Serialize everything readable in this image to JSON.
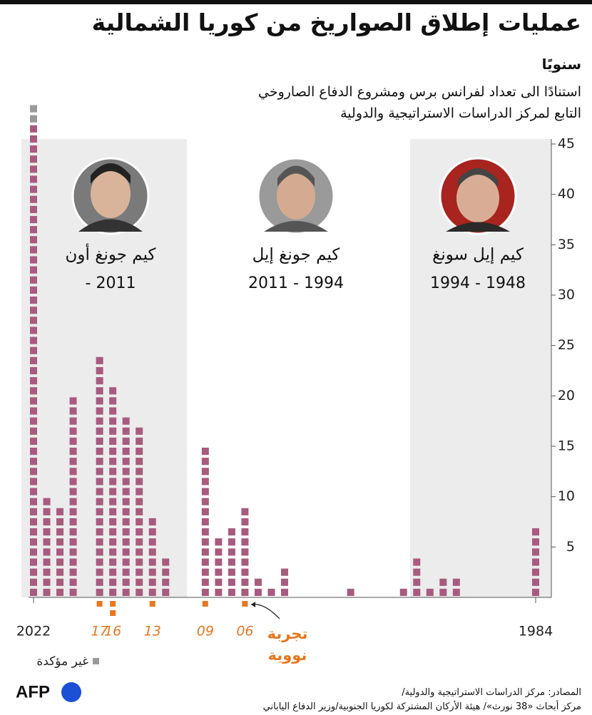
{
  "chart_data": {
    "type": "unit-bar",
    "title": "عمليات إطلاق الصواريخ من كوريا الشمالية",
    "subtitle": "سنويًا",
    "description": [
      "استنادًا الى تعداد لفرانس برس ومشروع الدفاع الصاروخي",
      "التابع لمركز الدراسات الاستراتيجية والدولية"
    ],
    "x": [
      2022,
      2021,
      2020,
      2019,
      2018,
      2017,
      2016,
      2015,
      2014,
      2013,
      2012,
      2011,
      2010,
      2009,
      2008,
      2007,
      2006,
      2005,
      2004,
      2003,
      2002,
      2001,
      2000,
      1999,
      1998,
      1997,
      1996,
      1995,
      1994,
      1993,
      1992,
      1991,
      1990,
      1989,
      1988,
      1987,
      1986,
      1985,
      1984
    ],
    "series": [
      {
        "color": "#a85b7e",
        "values": [
          47,
          10,
          9,
          20,
          0,
          24,
          21,
          18,
          17,
          8,
          4,
          0,
          0,
          15,
          6,
          7,
          9,
          2,
          1,
          3,
          0,
          0,
          0,
          0,
          1,
          0,
          0,
          0,
          1,
          4,
          1,
          2,
          2,
          0,
          0,
          0,
          0,
          0,
          7
        ]
      },
      {
        "name": "غير مؤكدة",
        "color": "#9a9a9a",
        "values": [
          2,
          0,
          0,
          0,
          0,
          0,
          0,
          0,
          0,
          0,
          0,
          0,
          0,
          0,
          0,
          0,
          0,
          0,
          0,
          0,
          0,
          0,
          0,
          0,
          0,
          0,
          0,
          0,
          0,
          0,
          0,
          0,
          0,
          0,
          0,
          0,
          0,
          0,
          0
        ]
      }
    ],
    "xlim": [
      2022,
      1984
    ],
    "xticks": [
      2022,
      1984
    ],
    "ylim": [
      0,
      45
    ],
    "yticks": [
      5,
      10,
      15,
      20,
      25,
      30,
      35,
      40,
      45
    ],
    "grid": false,
    "nuclear_tests": {
      "label": [
        "تجربة",
        "نووية"
      ],
      "color": "#e8771e",
      "years": [
        {
          "value": 2017,
          "label": "17"
        },
        {
          "value": 2016,
          "label": "16"
        },
        {
          "value": 2013,
          "label": "13"
        },
        {
          "value": 2009,
          "label": "09"
        },
        {
          "value": 2006,
          "label": "06"
        }
      ],
      "counts": [
        1,
        2,
        1,
        1,
        1
      ]
    },
    "leaders": [
      {
        "name": "كيم جونغ أون",
        "years": "- 2011"
      },
      {
        "name": "كيم جونغ إيل",
        "years": "2011 - 1994"
      },
      {
        "name": "كيم إيل سونغ",
        "years": "1994 - 1948"
      }
    ]
  },
  "sources": [
    "المصادر: مركز الدراسات الاستراتيجية والدولية/",
    "مركز أبحاث «38 نورث»/ هيئة الأركان المشتركة لكوريا الجنوبية/وزير الدفاع الياباني"
  ],
  "logo": "AFP"
}
